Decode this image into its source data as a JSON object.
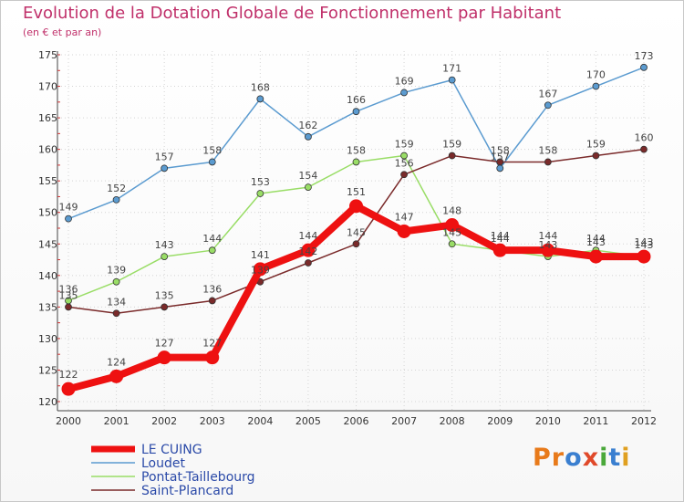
{
  "header": {
    "title": "Evolution de la Dotation Globale de Fonctionnement par Habitant",
    "subtitle": "(en € et par an)"
  },
  "brand": {
    "letters": [
      "P",
      "r",
      "o",
      "x",
      "i",
      "t",
      "i"
    ],
    "colors": [
      "#e87a1a",
      "#e87a1a",
      "#3a7fd0",
      "#e0492a",
      "#4aa83a",
      "#3a7fd0",
      "#e0a020"
    ]
  },
  "chart_data": {
    "type": "line",
    "title": "Evolution de la Dotation Globale de Fonctionnement par Habitant",
    "subtitle": "(en € et par an)",
    "xlabel": "",
    "ylabel": "",
    "categories": [
      "2000",
      "2001",
      "2002",
      "2003",
      "2004",
      "2005",
      "2006",
      "2007",
      "2008",
      "2009",
      "2010",
      "2011",
      "2012"
    ],
    "ylim": [
      120,
      175
    ],
    "yticks": [
      120,
      125,
      130,
      135,
      140,
      145,
      150,
      155,
      160,
      165,
      170,
      175
    ],
    "grid": true,
    "legend_position": "bottom-left",
    "series": [
      {
        "name": "LE CUING",
        "color": "#ee1111",
        "thick": true,
        "values": [
          122,
          124,
          127,
          127,
          141,
          144,
          151,
          147,
          148,
          144,
          144,
          143,
          143
        ]
      },
      {
        "name": "Loudet",
        "color": "#5b9bd0",
        "thick": false,
        "values": [
          149,
          152,
          157,
          158,
          168,
          162,
          166,
          169,
          171,
          157,
          167,
          170,
          173
        ]
      },
      {
        "name": "Pontat-Taillebourg",
        "color": "#99dd66",
        "thick": false,
        "values": [
          136,
          139,
          143,
          144,
          153,
          154,
          158,
          159,
          145,
          144,
          143,
          144,
          143
        ]
      },
      {
        "name": "Saint-Plancard",
        "color": "#7a2a2a",
        "thick": false,
        "values": [
          135,
          134,
          135,
          136,
          139,
          142,
          145,
          156,
          159,
          158,
          158,
          159,
          160
        ]
      }
    ]
  }
}
